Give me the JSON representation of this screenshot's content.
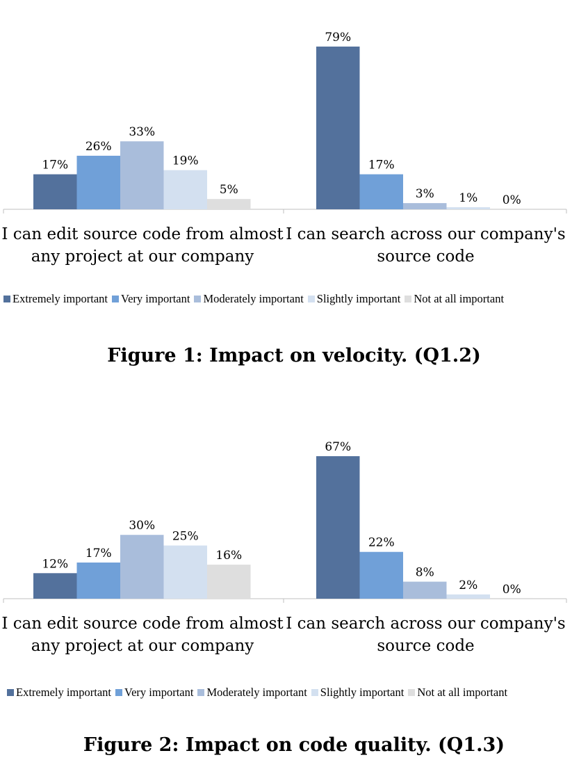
{
  "colors": {
    "Extremely important": "#53719c",
    "Very important": "#70a0d8",
    "Moderately important": "#a9bddb",
    "Slightly important": "#d3e0f0",
    "Not at all important": "#dedede",
    "axis": "#bfbfbf"
  },
  "chart_data": [
    {
      "type": "bar",
      "categories": [
        "I can edit source code from almost any project at our company",
        "I can search across our company's source code"
      ],
      "category_lines": [
        [
          "I can edit source code from almost",
          "any project at our company"
        ],
        [
          "I can search across our company's",
          "source code"
        ]
      ],
      "series": [
        {
          "name": "Extremely important",
          "values": [
            17,
            79
          ]
        },
        {
          "name": "Very important",
          "values": [
            26,
            17
          ]
        },
        {
          "name": "Moderately important",
          "values": [
            33,
            3
          ]
        },
        {
          "name": "Slightly important",
          "values": [
            19,
            1
          ]
        },
        {
          "name": "Not at all important",
          "values": [
            5,
            0
          ]
        }
      ],
      "unit": "%",
      "ylim": [
        0,
        80
      ],
      "grid": false,
      "legend_position": "bottom",
      "caption": "Figure 1: Impact on velocity. (Q1.2)"
    },
    {
      "type": "bar",
      "categories": [
        "I can edit source code from almost any project at our company",
        "I can search across our company's source code"
      ],
      "category_lines": [
        [
          "I can edit source code from almost",
          "any project at our company"
        ],
        [
          "I can search across our company's",
          "source code"
        ]
      ],
      "series": [
        {
          "name": "Extremely important",
          "values": [
            12,
            67
          ]
        },
        {
          "name": "Very important",
          "values": [
            17,
            22
          ]
        },
        {
          "name": "Moderately important",
          "values": [
            30,
            8
          ]
        },
        {
          "name": "Slightly important",
          "values": [
            25,
            2
          ]
        },
        {
          "name": "Not at all important",
          "values": [
            16,
            0
          ]
        }
      ],
      "unit": "%",
      "ylim": [
        0,
        68
      ],
      "grid": false,
      "legend_position": "bottom",
      "caption": "Figure 2: Impact on code quality. (Q1.3)"
    }
  ]
}
